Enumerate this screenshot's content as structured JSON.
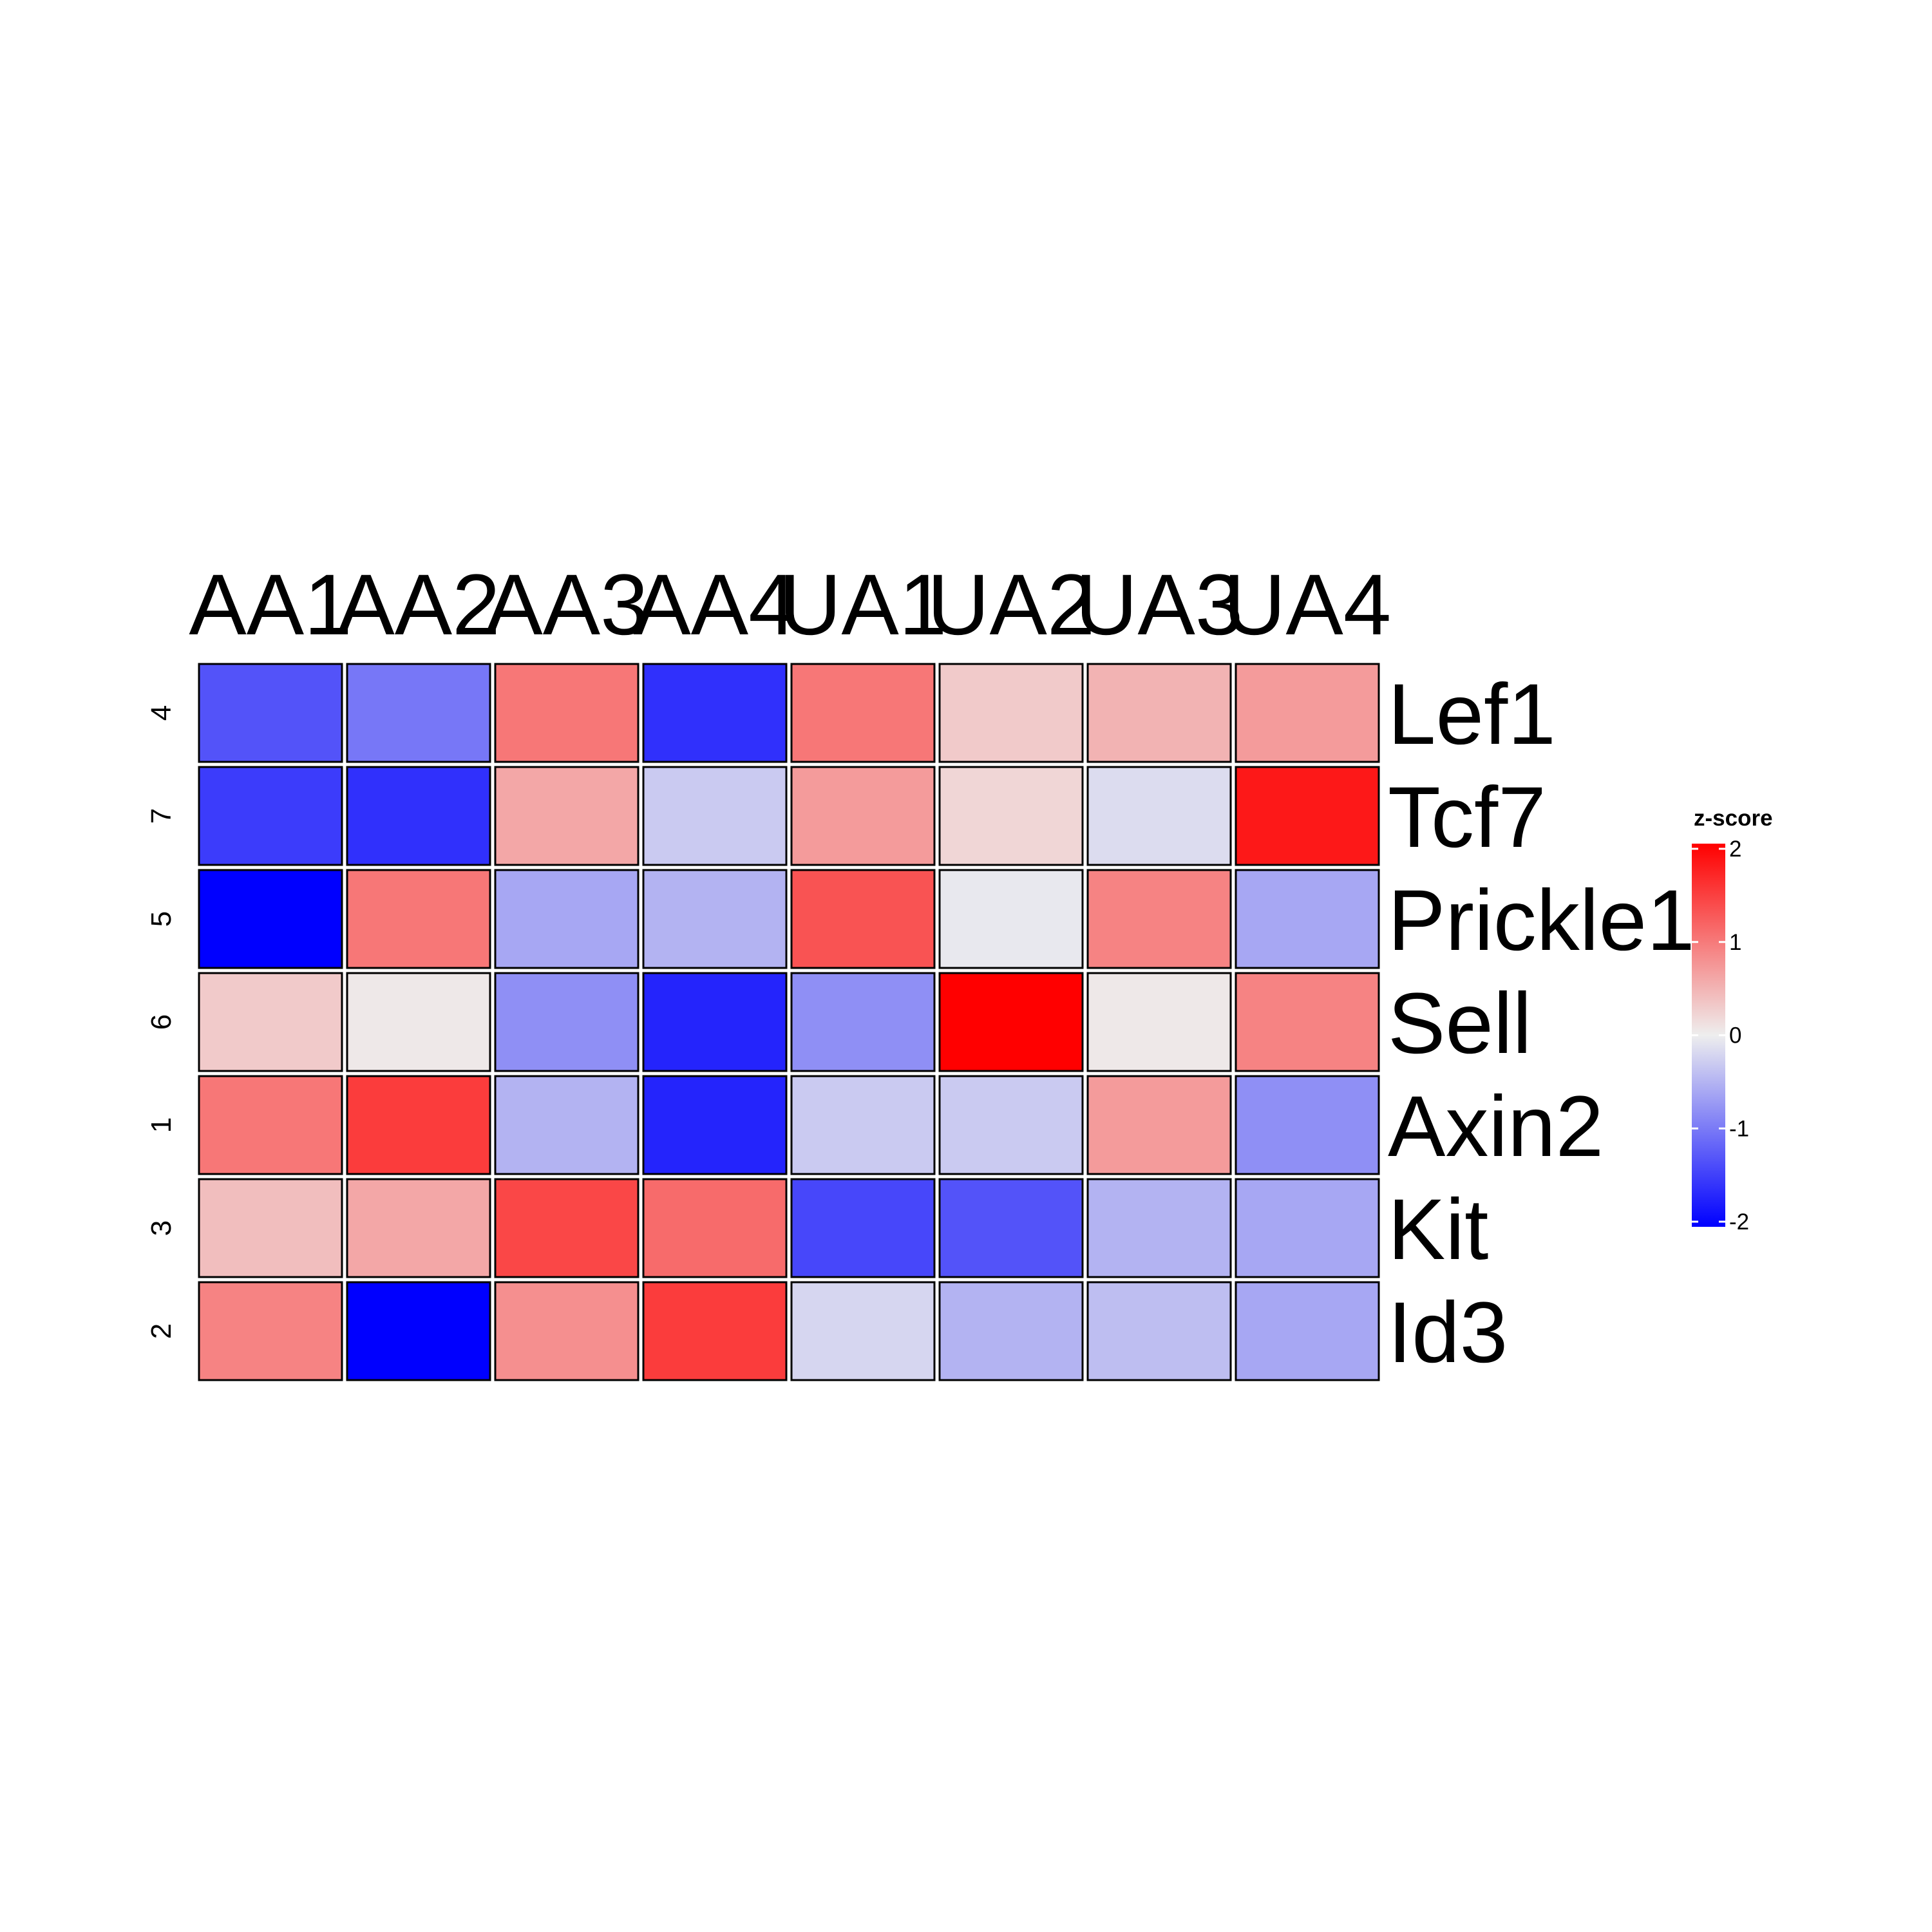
{
  "chart_data": {
    "type": "heatmap",
    "columns": [
      "AA1",
      "AA2",
      "AA3",
      "AA4",
      "UA1",
      "UA2",
      "UA3",
      "UA4"
    ],
    "rows": [
      "Lef1",
      "Tcf7",
      "Prickle1",
      "Sell",
      "Axin2",
      "Kit",
      "Id3"
    ],
    "row_clusters": [
      "4",
      "7",
      "5",
      "6",
      "1",
      "3",
      "2"
    ],
    "values": [
      [
        -1.3,
        -1.0,
        1.0,
        -1.6,
        1.0,
        0.3,
        0.5,
        0.7
      ],
      [
        -1.5,
        -1.6,
        0.6,
        -0.3,
        0.7,
        0.2,
        -0.15,
        1.8
      ],
      [
        -2.1,
        1.0,
        -0.6,
        -0.5,
        1.3,
        -0.05,
        0.9,
        -0.6
      ],
      [
        0.3,
        0.05,
        -0.8,
        -1.7,
        -0.8,
        2.1,
        0.05,
        0.9
      ],
      [
        1.0,
        1.5,
        -0.5,
        -1.7,
        -0.3,
        -0.3,
        0.7,
        -0.8
      ],
      [
        0.4,
        0.6,
        1.4,
        1.1,
        -1.4,
        -1.3,
        -0.5,
        -0.6
      ],
      [
        0.9,
        -2.1,
        0.8,
        1.5,
        -0.2,
        -0.5,
        -0.4,
        -0.6
      ]
    ],
    "color_scale": {
      "min_value": -2,
      "mid_value": 0,
      "max_value": 2,
      "low_color": "#0000ff",
      "mid_color": "#eeeeee",
      "high_color": "#ff0000"
    },
    "legend": {
      "title": "z-score",
      "ticks": [
        "2",
        "1",
        "0",
        "-1",
        "-2"
      ],
      "tick_values": [
        2,
        1,
        0,
        -1,
        -2
      ],
      "placement": "right"
    },
    "cell_border_color": "#000000"
  }
}
